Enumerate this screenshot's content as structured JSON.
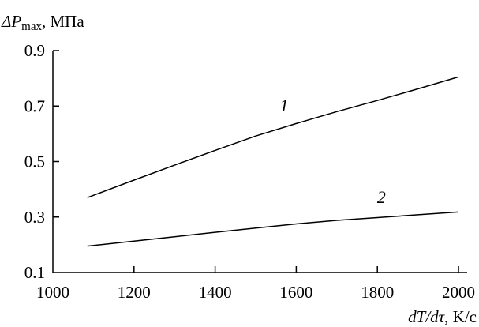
{
  "chart_data": {
    "type": "line",
    "title": "",
    "ylabel": {
      "symbol": "ΔP",
      "subscript": "max",
      "unit": ", МПа"
    },
    "xlabel": {
      "text": "dT/dτ",
      "unit": ", K/c"
    },
    "xlim": [
      1000,
      2000
    ],
    "ylim": [
      0.1,
      0.9
    ],
    "xticks": [
      1000,
      1200,
      1400,
      1600,
      1800,
      2000
    ],
    "yticks": [
      0.1,
      0.3,
      0.5,
      0.7,
      0.9
    ],
    "x_tick_labels": [
      "1000",
      "1200",
      "1400",
      "1600",
      "1800",
      "2000"
    ],
    "y_tick_labels": [
      "0.1",
      "0.3",
      "0.5",
      "0.7",
      "0.9"
    ],
    "grid": false,
    "series": [
      {
        "name": "1",
        "x": [
          1085,
          1200,
          1300,
          1400,
          1500,
          1600,
          1700,
          1800,
          1900,
          2000
        ],
        "y": [
          0.37,
          0.433,
          0.487,
          0.54,
          0.592,
          0.637,
          0.68,
          0.72,
          0.762,
          0.805
        ]
      },
      {
        "name": "2",
        "x": [
          1085,
          1200,
          1300,
          1400,
          1500,
          1600,
          1700,
          1800,
          1900,
          2000
        ],
        "y": [
          0.195,
          0.213,
          0.229,
          0.245,
          0.26,
          0.275,
          0.288,
          0.298,
          0.308,
          0.318
        ]
      }
    ]
  }
}
